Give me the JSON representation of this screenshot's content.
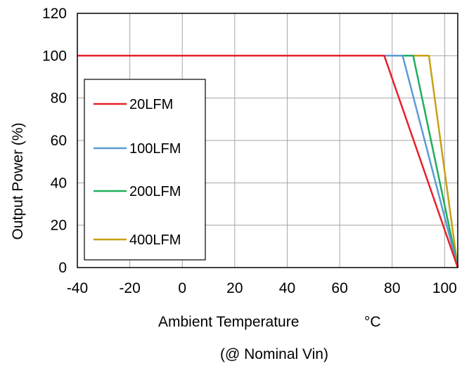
{
  "chart_data": {
    "type": "line",
    "xlabel": "Ambient Temperature",
    "xunit": "°C",
    "ylabel": "Output Power  (%)",
    "note": "(@ Nominal Vin)",
    "xlim": [
      -40,
      105
    ],
    "ylim": [
      0,
      120
    ],
    "xticks": [
      -40,
      -20,
      0,
      20,
      40,
      60,
      80,
      100
    ],
    "yticks": [
      0,
      20,
      40,
      60,
      80,
      100,
      120
    ],
    "grid": true,
    "legend_position": "left",
    "series": [
      {
        "name": "20LFM",
        "color": "#e8202a",
        "points": [
          [
            -40,
            100
          ],
          [
            77,
            100
          ],
          [
            105,
            0
          ]
        ]
      },
      {
        "name": "100LFM",
        "color": "#5b9bd5",
        "points": [
          [
            -40,
            100
          ],
          [
            84,
            100
          ],
          [
            105,
            0
          ]
        ]
      },
      {
        "name": "200LFM",
        "color": "#1fae5b",
        "points": [
          [
            -40,
            100
          ],
          [
            88,
            100
          ],
          [
            105,
            0
          ]
        ]
      },
      {
        "name": "400LFM",
        "color": "#c9a015",
        "points": [
          [
            -40,
            100
          ],
          [
            94,
            100
          ],
          [
            105,
            0
          ]
        ]
      }
    ]
  }
}
